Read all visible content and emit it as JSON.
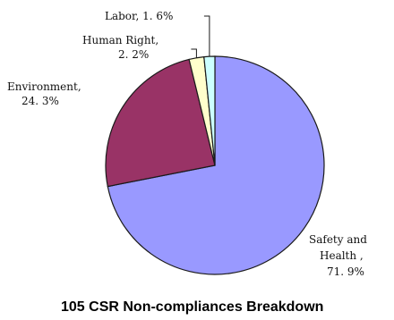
{
  "chart_data": {
    "type": "pie",
    "title": "105 CSR Non-compliances Breakdown",
    "start_angle_deg": 0,
    "direction": "clockwise",
    "slices": [
      {
        "label": "Safety and Health",
        "value": 71.9,
        "label_text": [
          "Safety and",
          "Health ,",
          "71. 9%"
        ],
        "color": "#9999ff"
      },
      {
        "label": "Environment",
        "value": 24.3,
        "label_text": [
          "Environment,",
          "24. 3%"
        ],
        "color": "#993366"
      },
      {
        "label": "Human Right",
        "value": 2.2,
        "label_text": [
          "Human Right,",
          "2. 2%"
        ],
        "color": "#ffffcc"
      },
      {
        "label": "Labor",
        "value": 1.6,
        "label_text": [
          "Labor, 1. 6%"
        ],
        "color": "#ccffff"
      }
    ]
  }
}
